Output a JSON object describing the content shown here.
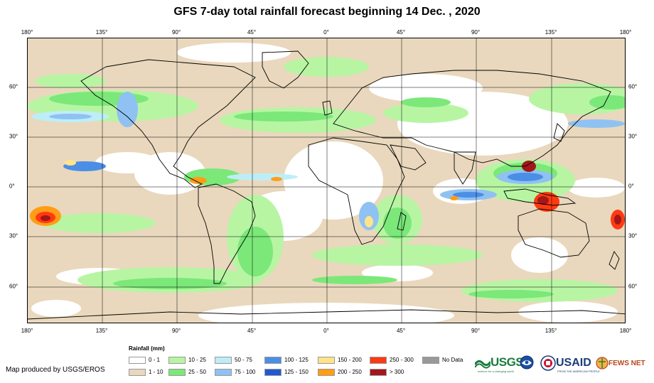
{
  "title": "GFS 7-day total rainfall forecast beginning 14 Dec. , 2020",
  "longitude_labels": [
    "180°",
    "135°",
    "90°",
    "45°",
    "0°",
    "45°",
    "90°",
    "135°",
    "180°"
  ],
  "latitude_labels": [
    "60°",
    "30°",
    "0°",
    "30°",
    "60°"
  ],
  "legend": {
    "title": "Rainfall (mm)",
    "items": [
      {
        "label": "0 - 1",
        "color": "#ffffff"
      },
      {
        "label": "1 - 10",
        "color": "#e9d8bd"
      },
      {
        "label": "10 - 25",
        "color": "#b7f5a3"
      },
      {
        "label": "25 - 50",
        "color": "#7be879"
      },
      {
        "label": "50 - 75",
        "color": "#bdeef8"
      },
      {
        "label": "75 - 100",
        "color": "#8fc2f2"
      },
      {
        "label": "100 - 125",
        "color": "#4b8ee6"
      },
      {
        "label": "125 - 150",
        "color": "#1f5ad0"
      },
      {
        "label": "150 - 200",
        "color": "#ffe48a"
      },
      {
        "label": "200 - 250",
        "color": "#ff9d16"
      },
      {
        "label": "250 - 300",
        "color": "#ff3a12"
      },
      {
        "label": "> 300",
        "color": "#a3171a"
      },
      {
        "label": "No Data",
        "color": "#999999"
      }
    ]
  },
  "credit": "Map produced by USGS/EROS",
  "logos": {
    "usgs": "USGS",
    "usgs_tagline": "science for a changing world",
    "usaid": "USAID",
    "usaid_tagline": "FROM THE AMERICAN PEOPLE",
    "fews": "FEWS NET"
  }
}
